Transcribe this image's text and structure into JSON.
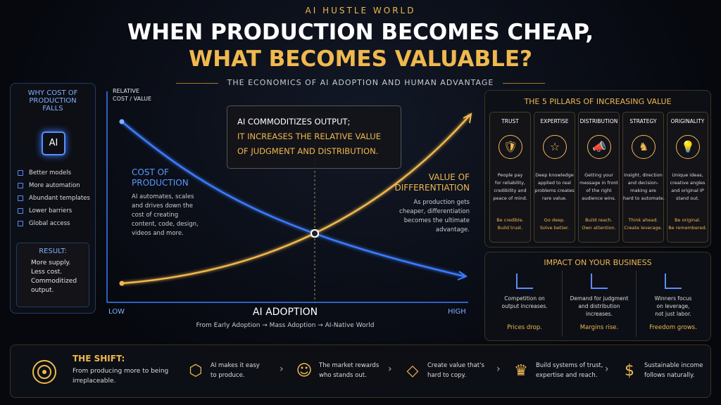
{
  "header": {
    "brand": "AI HUSTLE WORLD",
    "title_line1": "WHEN PRODUCTION BECOMES CHEAP,",
    "title_line2": "WHAT BECOMES VALUABLE?",
    "subtitle": "THE ECONOMICS OF AI ADOPTION AND HUMAN ADVANTAGE"
  },
  "left_panel": {
    "title": [
      "WHY COST OF",
      "PRODUCTION",
      "FALLS"
    ],
    "icon_label": "AI",
    "items": [
      "Better models",
      "More automation",
      "Abundant templates",
      "Lower barriers",
      "Global access"
    ],
    "result_title": "RESULT:",
    "result_text": [
      "More supply.",
      "Less cost.",
      "Commoditized",
      "output."
    ]
  },
  "chart": {
    "y_label": [
      "RELATIVE",
      "COST / VALUE"
    ],
    "callout": [
      "AI COMMODITIZES OUTPUT;",
      "IT INCREASES THE RELATIVE VALUE",
      "OF JUDGMENT AND DISTRIBUTION."
    ],
    "cost_title": [
      "COST OF",
      "PRODUCTION"
    ],
    "cost_text": [
      "AI automates, scales",
      "and drives down the",
      "cost of creating",
      "content, code, design,",
      "videos and more."
    ],
    "value_title": [
      "VALUE OF",
      "DIFFERENTIATION"
    ],
    "value_text": [
      "As production gets",
      "cheaper, differentiation",
      "becomes the ultimate",
      "advantage."
    ],
    "x_low": "LOW",
    "x_high": "HIGH",
    "x_title": "AI ADOPTION",
    "x_sub": "From Early Adoption → Mass Adoption → AI-Native World"
  },
  "pillars": {
    "title": "THE 5 PILLARS OF INCREASING VALUE",
    "items": [
      {
        "name": "TRUST",
        "text": [
          "People pay",
          "for reliability,",
          "credibility and",
          "peace of mind."
        ],
        "tagline": [
          "Be credible.",
          "Build trust."
        ]
      },
      {
        "name": "EXPERTISE",
        "text": [
          "Deep knowledge",
          "applied to real",
          "problems creates",
          "rare value."
        ],
        "tagline": [
          "Go deep.",
          "Solve better."
        ]
      },
      {
        "name": "DISTRIBUTION",
        "text": [
          "Getting your",
          "message in front",
          "of the right",
          "audience wins."
        ],
        "tagline": [
          "Build reach.",
          "Own attention."
        ]
      },
      {
        "name": "STRATEGY",
        "text": [
          "Insight, direction",
          "and decision-",
          "making are",
          "hard to automate."
        ],
        "tagline": [
          "Think ahead.",
          "Create leverage."
        ]
      },
      {
        "name": "ORIGINALITY",
        "text": [
          "Unique ideas,",
          "creative angles",
          "and original IP",
          "stand out."
        ],
        "tagline": [
          "Be original.",
          "Be remembered."
        ]
      }
    ]
  },
  "impact": {
    "title": "IMPACT ON YOUR BUSINESS",
    "items": [
      {
        "text": [
          "Competition on",
          "output increases."
        ],
        "result": "Prices drop."
      },
      {
        "text": [
          "Demand for judgment",
          "and distribution",
          "increases."
        ],
        "result": "Margins rise."
      },
      {
        "text": [
          "Winners focus",
          "on leverage,",
          "not just labor."
        ],
        "result": "Freedom grows."
      }
    ]
  },
  "shift": {
    "title": "THE SHIFT:",
    "text": [
      "From producing more to being",
      "irreplaceable."
    ],
    "steps": [
      [
        "AI makes it easy",
        "to produce."
      ],
      [
        "The market rewards",
        "who stands out."
      ],
      [
        "Create value that's",
        "hard to copy."
      ],
      [
        "Build systems of trust,",
        "expertise and reach."
      ],
      [
        "Sustainable income",
        "follows naturally."
      ]
    ]
  }
}
